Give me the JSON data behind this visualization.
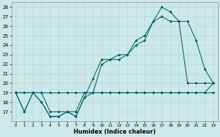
{
  "xlabel": "Humidex (Indice chaleur)",
  "x": [
    0,
    1,
    2,
    3,
    4,
    5,
    6,
    7,
    8,
    9,
    10,
    11,
    12,
    13,
    14,
    15,
    16,
    17,
    18,
    19,
    20,
    21,
    22,
    23
  ],
  "line_flat": [
    19,
    19,
    19,
    19,
    19,
    19,
    19,
    19,
    19,
    19,
    19,
    19,
    19,
    19,
    19,
    19,
    19,
    19,
    19,
    19,
    19,
    19,
    19,
    19
  ],
  "line_zigzag": [
    19,
    17,
    19,
    18,
    16.5,
    16.5,
    17,
    16.5,
    18.5,
    19,
    19,
    19,
    19,
    19,
    19,
    19,
    19,
    19,
    19,
    19,
    19,
    19,
    19,
    20
  ],
  "line_curve": [
    19,
    17,
    19,
    18,
    16.5,
    16.5,
    17,
    16.5,
    18.5,
    20.5,
    22.5,
    22.5,
    22.5,
    23,
    24,
    24.5,
    26.5,
    27,
    26.5,
    26.5,
    26.5,
    24.5,
    21.5,
    20
  ],
  "line_top": [
    19,
    19,
    19,
    19,
    17,
    17,
    17,
    17,
    19,
    19,
    22,
    22.5,
    23,
    23,
    24.5,
    25,
    26.5,
    28,
    27.5,
    26.5,
    20,
    20,
    20,
    20
  ],
  "color": "#006666",
  "bg_color": "#cce8e8",
  "grid_color": "#b0d4d4",
  "ylim": [
    16.0,
    28.5
  ],
  "xlim": [
    -0.5,
    23.5
  ],
  "yticks": [
    17,
    18,
    19,
    20,
    21,
    22,
    23,
    24,
    25,
    26,
    27,
    28
  ],
  "xticks": [
    0,
    1,
    2,
    3,
    4,
    5,
    6,
    7,
    8,
    9,
    10,
    11,
    12,
    13,
    14,
    15,
    16,
    17,
    18,
    19,
    20,
    21,
    22,
    23
  ]
}
